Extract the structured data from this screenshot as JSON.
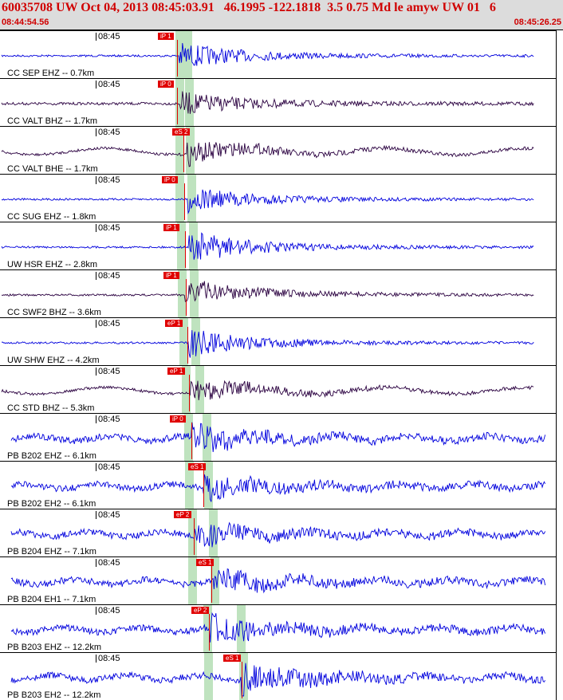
{
  "header": {
    "title": "60035708 UW Oct 04, 2013 08:45:03.91   46.1995 -122.1818  3.5 0.75 Md le amyw UW 01   6",
    "start_time": "08:44:54.56",
    "end_time": "08:45:26.25"
  },
  "colors": {
    "header_bg": "#dcdcdc",
    "title_red": "#d00000",
    "trace_blue": "#0000dd",
    "trace_dark": "#2a0040",
    "pick_red": "#e00000",
    "band_green": "#bfe3bf"
  },
  "panels": [
    {
      "tick": "08:45",
      "label": "CC SEP EHZ -- 0.7km",
      "pick": "iP 1",
      "color": "blue"
    },
    {
      "tick": "08:45",
      "label": "CC VALT BHZ -- 1.7km",
      "pick": "iP 0",
      "color": "dark"
    },
    {
      "tick": "08:45",
      "label": "CC VALT BHE -- 1.7km",
      "pick": "eS 2",
      "color": "dark"
    },
    {
      "tick": "08:45",
      "label": "CC SUG EHZ -- 1.8km",
      "pick": "iP 0",
      "color": "blue"
    },
    {
      "tick": "08:45",
      "label": "UW HSR EHZ -- 2.8km",
      "pick": "iP 1",
      "color": "blue"
    },
    {
      "tick": "08:45",
      "label": "CC SWF2 BHZ -- 3.6km",
      "pick": "iP 1",
      "color": "dark"
    },
    {
      "tick": "08:45",
      "label": "UW SHW EHZ -- 4.2km",
      "pick": "eP 1",
      "color": "blue"
    },
    {
      "tick": "08:45",
      "label": "CC STD BHZ -- 5.3km",
      "pick": "eP 1",
      "color": "dark"
    },
    {
      "tick": "08:45",
      "label": "PB B202 EHZ -- 6.1km",
      "pick": "iP 0",
      "color": "blue"
    },
    {
      "tick": "08:45",
      "label": "PB B202 EH2 -- 6.1km",
      "pick": "eS 1",
      "color": "blue"
    },
    {
      "tick": "08:45",
      "label": "PB B204 EHZ -- 7.1km",
      "pick": "eP 2",
      "color": "blue"
    },
    {
      "tick": "08:45",
      "label": "PB B204 EH1 -- 7.1km",
      "pick": "eS 1",
      "color": "blue"
    },
    {
      "tick": "08:45",
      "label": "PB B203 EHZ -- 12.2km",
      "pick": "eP 2",
      "color": "blue"
    },
    {
      "tick": "08:45",
      "label": "PB B203 EH2 -- 12.2km",
      "pick": "eS 1",
      "color": "blue"
    }
  ]
}
